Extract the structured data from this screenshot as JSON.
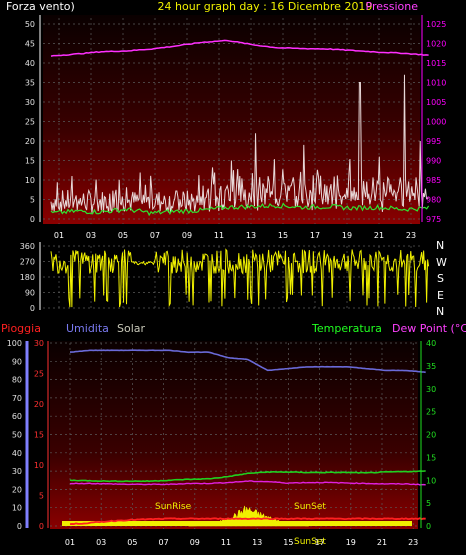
{
  "header": {
    "left_label": "Forza vento)",
    "center_label": "24 hour graph day : 16 Dicembre 2019",
    "right_label": "Pressione"
  },
  "bottom_header": {
    "pioggia": "Pioggia",
    "umidita": "Umidita",
    "solar": "Solar",
    "temperatura": "Temperatura",
    "dewpoint": "Dew Point (°C)"
  },
  "compass": [
    "N",
    "W",
    "S",
    "E",
    "N"
  ],
  "annotations": {
    "sunrise": "SunRise",
    "sunset": "SunSet",
    "sunset_axis": "SunSet"
  },
  "colors": {
    "wind": "#e0c8c8",
    "gust": "#e8d8d8",
    "avg_wind": "#30e030",
    "pressure": "#ff30ff",
    "direction": "#f0f000",
    "humidity": "#6a6ad8",
    "rain": "#ff2020",
    "temperature": "#20d020",
    "dewpoint": "#e020e0",
    "solar": "#f0f000",
    "left_axis": "#e0e0e0",
    "right_axis": "#ff00ff",
    "bottom_left_axis": "#ff3030",
    "bottom_second_axis": "#8080ff",
    "bottom_right_axis": "#20e020"
  },
  "chart_data": [
    {
      "type": "line",
      "name": "wind-pressure",
      "x_ticks": [
        "01",
        "03",
        "05",
        "07",
        "09",
        "11",
        "13",
        "15",
        "17",
        "19",
        "21",
        "23"
      ],
      "y_left_ticks": [
        "0",
        "5",
        "10",
        "15",
        "20",
        "25",
        "30",
        "35",
        "40",
        "45",
        "50"
      ],
      "y_left_range": [
        0,
        50
      ],
      "y_right_ticks": [
        "975",
        "980",
        "985",
        "990",
        "995",
        "1000",
        "1005",
        "1010",
        "1015",
        "1020",
        "1025"
      ],
      "y_right_range": [
        975,
        1025
      ],
      "pressure": [
        1016.8,
        1017.3,
        1017.9,
        1018.1,
        1018.6,
        1019.4,
        1020.3,
        1020.8,
        1019.7,
        1018.9,
        1018.7,
        1018.6,
        1018.2,
        1017.8,
        1017.5,
        1017.0
      ],
      "avg_wind": [
        1.5,
        2.0,
        1.8,
        2.5,
        1.5,
        2.0,
        2.2,
        3.0,
        3.2,
        3.5,
        3.0,
        3.2,
        2.8,
        3.0,
        2.5,
        2.8
      ],
      "gust_peaks": [
        {
          "hour": 11.8,
          "value": 15
        },
        {
          "hour": 13.3,
          "value": 22
        },
        {
          "hour": 16.3,
          "value": 19
        },
        {
          "hour": 19.8,
          "value": 35
        },
        {
          "hour": 21.0,
          "value": 16
        },
        {
          "hour": 22.6,
          "value": 37
        },
        {
          "hour": 23.6,
          "value": 20
        }
      ]
    },
    {
      "type": "scatter",
      "name": "wind-direction",
      "x_ticks": [
        "01",
        "03",
        "05",
        "07",
        "09",
        "11",
        "13",
        "15",
        "17",
        "19",
        "21",
        "23"
      ],
      "y_ticks": [
        "0",
        "90",
        "180",
        "270",
        "360"
      ],
      "y_range": [
        0,
        360
      ],
      "typical_range": [
        200,
        340
      ]
    },
    {
      "type": "line",
      "name": "temperature-humidity",
      "x_ticks": [
        "01",
        "03",
        "05",
        "07",
        "09",
        "11",
        "13",
        "15",
        "17",
        "19",
        "21",
        "23"
      ],
      "y_humidity_ticks": [
        "0",
        "10",
        "20",
        "30",
        "40",
        "50",
        "60",
        "70",
        "80",
        "90",
        "100"
      ],
      "y_humidity_range": [
        0,
        100
      ],
      "y_rain_ticks": [
        "0",
        "5",
        "10",
        "15",
        "20",
        "25",
        "30"
      ],
      "y_rain_range": [
        0,
        30
      ],
      "y_temp_ticks": [
        "0",
        "5",
        "10",
        "15",
        "20",
        "25",
        "30",
        "35",
        "40"
      ],
      "y_temp_range": [
        0,
        40
      ],
      "humidity": [
        95,
        96,
        96,
        96,
        96,
        96,
        95,
        95,
        92,
        91,
        85,
        86,
        87,
        87,
        87,
        86,
        85,
        85,
        84
      ],
      "temperature": [
        10.0,
        9.9,
        9.8,
        9.8,
        9.8,
        10.0,
        10.2,
        10.3,
        10.8,
        11.5,
        11.8,
        11.8,
        11.7,
        11.7,
        11.7,
        11.6,
        11.8,
        11.9,
        12.0
      ],
      "dewpoint": [
        9.3,
        9.3,
        9.2,
        9.1,
        9.1,
        9.1,
        9.3,
        9.3,
        9.5,
        9.8,
        9.7,
        9.4,
        9.5,
        9.5,
        9.4,
        9.3,
        9.2,
        9.2,
        9.0
      ],
      "rain": [
        0.3,
        0.5,
        0.8,
        1.0,
        1.1,
        1.2,
        1.2,
        1.2,
        1.2,
        1.2,
        1.2,
        1.2,
        1.2,
        1.2,
        1.2,
        1.2,
        1.2,
        1.2,
        1.2
      ],
      "solar_peak_hour": 12.3,
      "solar_window": [
        8.6,
        16.3
      ]
    }
  ]
}
